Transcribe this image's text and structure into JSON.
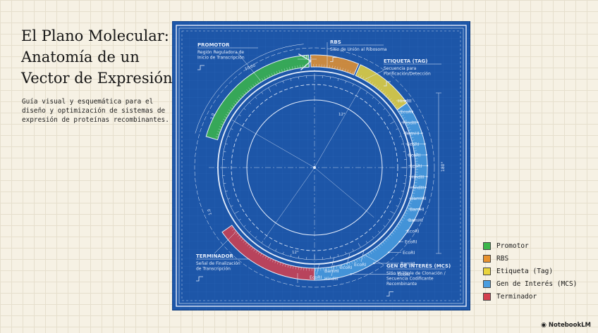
{
  "title": "El Plano Molecular: Anatomía de un Vector de Expresión",
  "subtitle": "Guía visual y esquemática para el diseño y optimización de sistemas de expresión de proteínas recombinantes.",
  "diagram": {
    "segments": [
      {
        "id": "promotor",
        "name": "PROMOTOR",
        "desc": [
          "Región Reguladora de",
          "Inicio de Transcripción"
        ],
        "color": "#3bb54a",
        "start": -74,
        "end": -3
      },
      {
        "id": "rbs",
        "name": "RBS",
        "desc": [
          "Sitio de Unión al Ribosoma"
        ],
        "color": "#e8922e",
        "start": -2,
        "end": 23
      },
      {
        "id": "tag",
        "name": "ETIQUETA (TAG)",
        "desc": [
          "Secuencia para",
          "Purificación/Detección"
        ],
        "color": "#e9d43c",
        "start": 24,
        "end": 55
      },
      {
        "id": "gen",
        "name": "GEN DE INTERÉS (MCS)",
        "desc": [
          "Sitio Múltiple de Clonación /",
          "Secuencia Codificante",
          "Recombinante"
        ],
        "color": "#4a9de0",
        "start": 55,
        "end": 180
      },
      {
        "id": "terminador",
        "name": "TERMINADOR",
        "desc": [
          "Señal de Finalización",
          "de Transcripción"
        ],
        "color": "#d4404f",
        "start": 180,
        "end": 235
      }
    ],
    "sites_right": [
      "HindIII",
      "EcoRI",
      "HindIII",
      "BamHI",
      "EcoRI",
      "EcoRI",
      "EcoRI",
      "HindIII",
      "HindIII",
      "BamHII",
      "BamHI",
      "BamHI",
      "EcoRI",
      "EcoRI",
      "EcoRI",
      "BamHI",
      "EcoRI"
    ],
    "sites_bottom": [
      "EcoRI",
      "BamHI",
      "HindIII",
      "EcoRI",
      "EcoRI"
    ],
    "dims": {
      "d1": "16.1",
      "d2": "10.00",
      "d3": "1.0",
      "d4": "1.0",
      "d5": "180°",
      "d6": "12°"
    }
  },
  "legend": [
    {
      "label": "Promotor",
      "color": "#3bb54a"
    },
    {
      "label": "RBS",
      "color": "#e8922e"
    },
    {
      "label": "Etiqueta (Tag)",
      "color": "#e9d43c"
    },
    {
      "label": "Gen de Interés (MCS)",
      "color": "#4a9de0"
    },
    {
      "label": "Terminador",
      "color": "#d4404f"
    }
  ],
  "brand": "NotebookLM"
}
